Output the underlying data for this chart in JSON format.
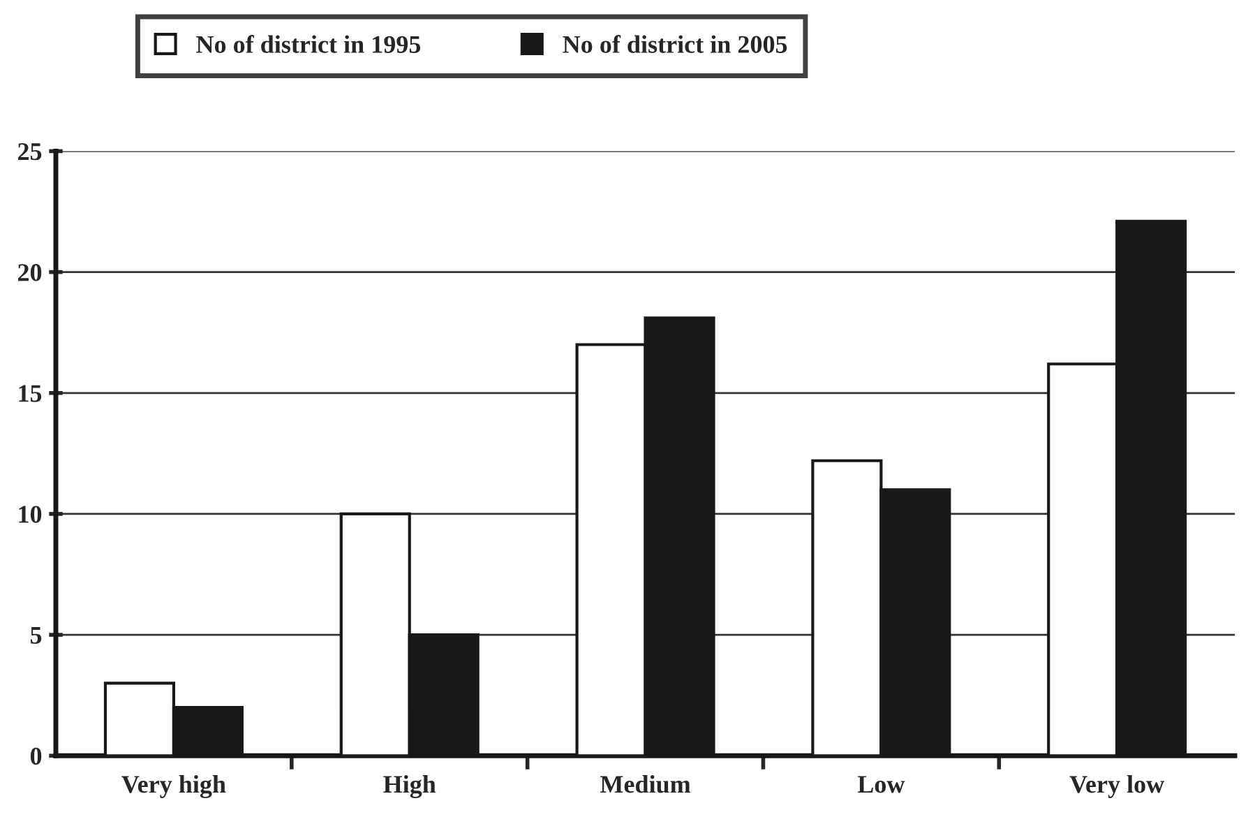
{
  "chart_data": {
    "type": "bar",
    "categories": [
      "Very high",
      "High",
      "Medium",
      "Low",
      "Very low"
    ],
    "series": [
      {
        "name": "No of district in 1995",
        "color": "#ffffff",
        "values": [
          3,
          10,
          17,
          12.2,
          16.2
        ]
      },
      {
        "name": "No of district in 2005",
        "color": "#181818",
        "values": [
          2,
          5,
          18.1,
          11,
          22.1
        ]
      }
    ],
    "ylim": [
      0,
      25
    ],
    "yticks": [
      0,
      5,
      10,
      15,
      20,
      25
    ],
    "grid": "y",
    "legend": "top"
  }
}
